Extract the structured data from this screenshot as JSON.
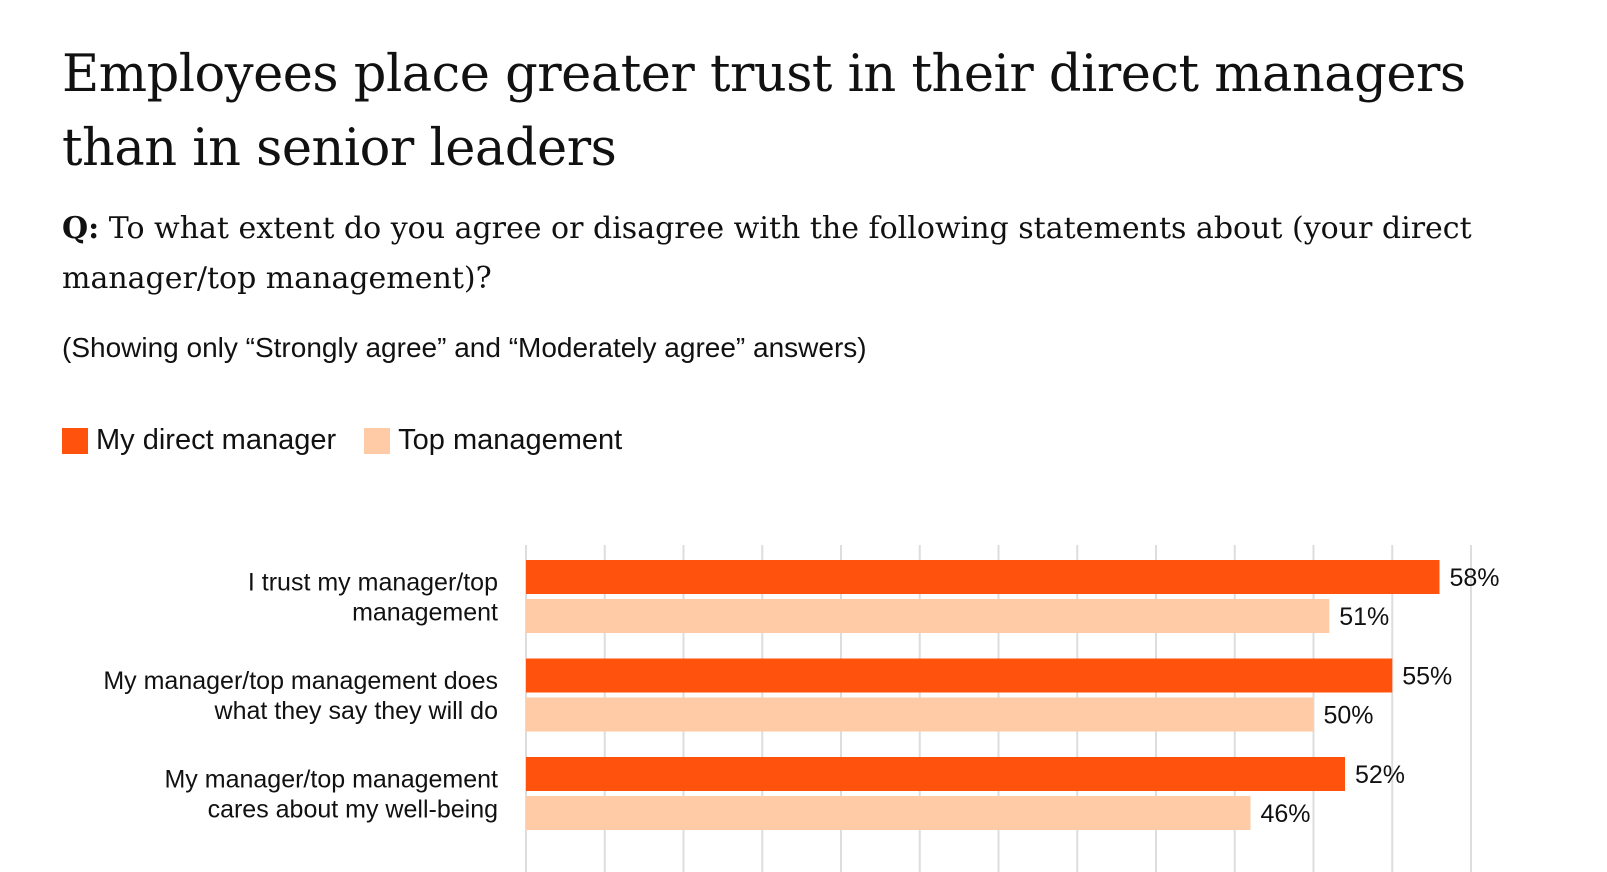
{
  "header": {
    "title": "Employees place greater trust in their direct managers than in senior leaders",
    "question_label": "Q:",
    "question_text": "To what extent do you agree or disagree with the following statements about (your direct manager/top management)?",
    "note": "(Showing only “Strongly agree” and “Moderately agree” answers)"
  },
  "colors": {
    "direct_manager": "#FF530D",
    "top_management": "#FECBA6",
    "gridline": "#DDDDDD"
  },
  "legend": [
    {
      "label": "My direct manager",
      "color": "#FF530D"
    },
    {
      "label": "Top management",
      "color": "#FECBA6"
    }
  ],
  "chart_data": {
    "type": "bar",
    "orientation": "horizontal",
    "title": "Employees place greater trust in their direct managers than in senior leaders",
    "categories": [
      [
        "I trust my manager/top",
        "management"
      ],
      [
        "My manager/top management does",
        "what they say they will do"
      ],
      [
        "My manager/top management",
        "cares about my well-being"
      ]
    ],
    "series": [
      {
        "name": "My direct manager",
        "values": [
          58,
          55,
          52
        ],
        "labels": [
          "58%",
          "55%",
          "52%"
        ]
      },
      {
        "name": "Top management",
        "values": [
          51,
          50,
          46
        ],
        "labels": [
          "51%",
          "50%",
          "46%"
        ]
      }
    ],
    "xlim": [
      0,
      60
    ],
    "grid_step": 5,
    "grid": true,
    "xlabel": "",
    "ylabel": "",
    "legend_position": "top-left"
  }
}
